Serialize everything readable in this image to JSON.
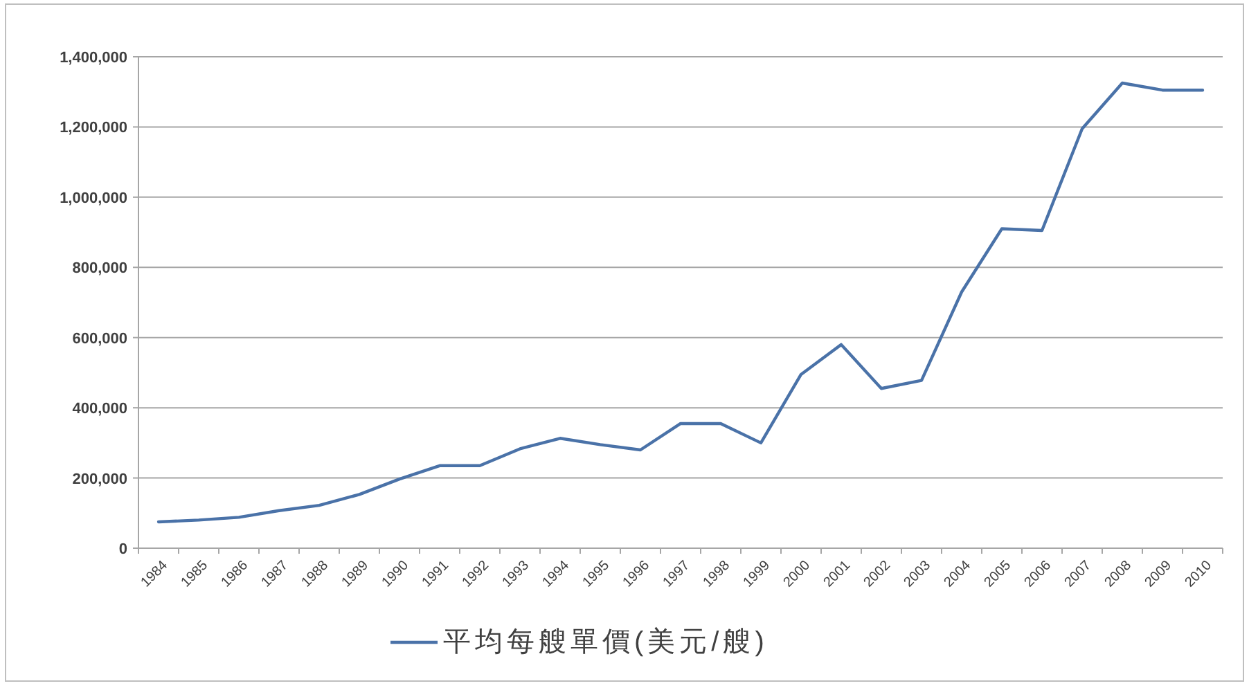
{
  "chart_data": {
    "type": "line",
    "categories": [
      "1984",
      "1985",
      "1986",
      "1987",
      "1988",
      "1989",
      "1990",
      "1991",
      "1992",
      "1993",
      "1994",
      "1995",
      "1996",
      "1997",
      "1998",
      "1999",
      "2000",
      "2001",
      "2002",
      "2003",
      "2004",
      "2005",
      "2006",
      "2007",
      "2008",
      "2009",
      "2010"
    ],
    "series": [
      {
        "name": "平均每艘單價(美元/艘)",
        "color": "#4a72a8",
        "values": [
          75000,
          80000,
          88000,
          107000,
          122000,
          153000,
          197000,
          235000,
          235000,
          283000,
          313000,
          295000,
          280000,
          355000,
          355000,
          300000,
          495000,
          580000,
          455000,
          478000,
          730000,
          910000,
          905000,
          1195000,
          1325000,
          1305000,
          1305000
        ]
      }
    ],
    "ylim": [
      0,
      1400000
    ],
    "yticks": [
      0,
      {
        "value": 200000,
        "label": "200,000"
      },
      {
        "value": 400000,
        "label": "400,000"
      },
      {
        "value": 600000,
        "label": "600,000"
      },
      {
        "value": 800000,
        "label": "800,000"
      },
      {
        "value": 1000000,
        "label": "1,000,000"
      },
      {
        "value": 1200000,
        "label": "1,200,000"
      },
      {
        "value": 1400000,
        "label": "1,400,000"
      }
    ],
    "grid": "y",
    "legend": "bottom",
    "marker": "none",
    "line_style": "solid"
  }
}
